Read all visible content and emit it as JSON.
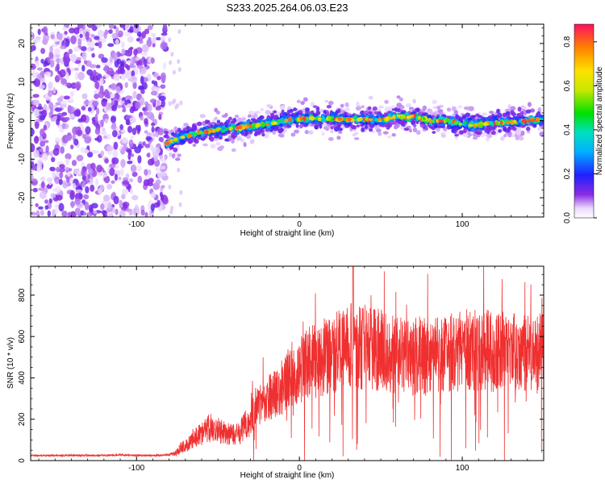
{
  "page_title": "S233.2025.264.06.03.E23",
  "chart_data": [
    {
      "type": "heatmap",
      "name": "spectrogram",
      "title": "S233.2025.264.06.03.E23",
      "xlabel": "Height of straight line (km)",
      "ylabel": "Frequency (Hz)",
      "xlim": [
        -165,
        150
      ],
      "ylim": [
        -25,
        25
      ],
      "xticks": [
        -100,
        0,
        100
      ],
      "xtick_labels": [
        "-100",
        "0",
        "100"
      ],
      "yticks": [
        -20,
        -10,
        0,
        10,
        20
      ],
      "ytick_labels": [
        "-20",
        "-10",
        "0",
        "10",
        "20"
      ],
      "noise_region_x": [
        -165,
        -82
      ],
      "dominant_frequency_trace": {
        "x": [
          -82,
          -70,
          -60,
          -50,
          -40,
          -30,
          -20,
          -10,
          0,
          10,
          20,
          30,
          40,
          50,
          60,
          70,
          80,
          90,
          100,
          110,
          120,
          130,
          140,
          150
        ],
        "y": [
          -6,
          -4,
          -3,
          -2.5,
          -2,
          -1.5,
          -1,
          0,
          0.5,
          0.5,
          0.5,
          0.3,
          0.3,
          0.2,
          1,
          1,
          0,
          0,
          -1,
          -1,
          -0.5,
          -0.5,
          0,
          0.3
        ]
      },
      "colorbar": {
        "label": "Normalized spectral amplitude",
        "range": [
          0,
          0.88
        ],
        "ticks": [
          0.0,
          0.2,
          0.4,
          0.6,
          0.8
        ],
        "tick_labels": [
          "0.0",
          "0.2",
          "0.4",
          "0.6",
          "0.8"
        ]
      }
    },
    {
      "type": "line",
      "name": "snr",
      "xlabel": "Height of straight line (km)",
      "ylabel": "SNR (10 * v/v)",
      "xlim": [
        -165,
        150
      ],
      "ylim": [
        0,
        940
      ],
      "xticks": [
        -100,
        0,
        100
      ],
      "xtick_labels": [
        "-100",
        "0",
        "100"
      ],
      "yticks": [
        0,
        200,
        400,
        600,
        800
      ],
      "ytick_labels": [
        "0",
        "200",
        "400",
        "600",
        "800"
      ],
      "color": "#f03030",
      "series": [
        {
          "name": "SNR",
          "x": [
            -165,
            -150,
            -140,
            -130,
            -120,
            -110,
            -100,
            -90,
            -80,
            -75,
            -72,
            -68,
            -65,
            -60,
            -55,
            -50,
            -45,
            -40,
            -35,
            -30,
            -25,
            -20,
            -15,
            -10,
            -5,
            0,
            5,
            10,
            15,
            20,
            25,
            30,
            35,
            40,
            45,
            50,
            55,
            60,
            65,
            70,
            75,
            80,
            85,
            90,
            95,
            100,
            105,
            110,
            115,
            120,
            125,
            130,
            135,
            140,
            145,
            150
          ],
          "values": [
            25,
            25,
            25,
            25,
            25,
            28,
            25,
            25,
            28,
            40,
            70,
            80,
            110,
            130,
            160,
            150,
            130,
            120,
            150,
            200,
            270,
            300,
            320,
            360,
            420,
            430,
            470,
            480,
            500,
            520,
            530,
            560,
            540,
            550,
            540,
            540,
            520,
            510,
            500,
            500,
            510,
            490,
            520,
            530,
            520,
            540,
            530,
            530,
            540,
            520,
            540,
            520,
            530,
            530,
            520,
            540
          ]
        }
      ]
    }
  ]
}
